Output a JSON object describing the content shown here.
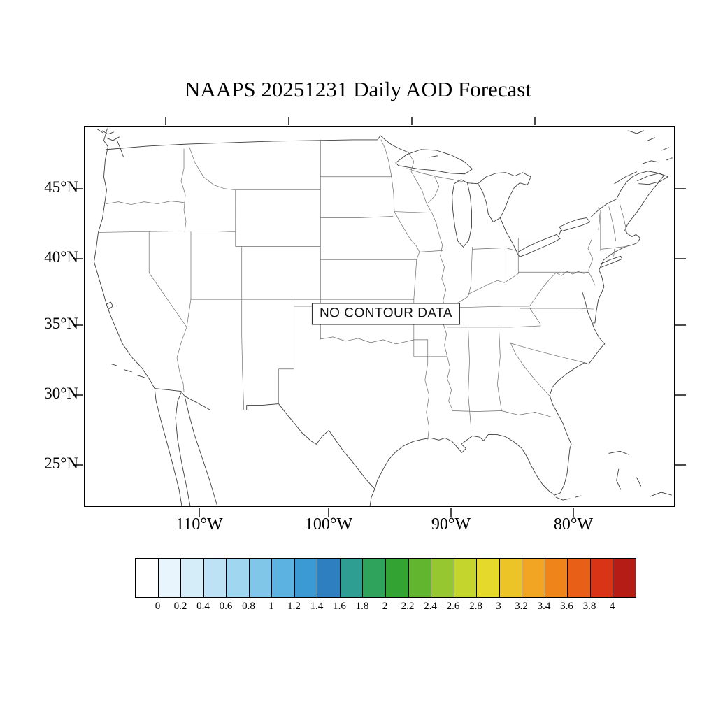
{
  "chart_data": {
    "type": "map",
    "title": "NAAPS 20251231 Daily AOD Forecast",
    "status_annotation": "NO CONTOUR DATA",
    "region": {
      "lat_tick_labels": [
        "45°N",
        "40°N",
        "35°N",
        "30°N",
        "25°N"
      ],
      "lon_tick_labels": [
        "110°W",
        "100°W",
        "90°W",
        "80°W"
      ]
    },
    "colorbar": {
      "tick_labels": [
        "0",
        "0.2",
        "0.4",
        "0.6",
        "0.8",
        "1",
        "1.2",
        "1.4",
        "1.6",
        "1.8",
        "2",
        "2.2",
        "2.4",
        "2.6",
        "2.8",
        "3",
        "3.2",
        "3.4",
        "3.6",
        "3.8",
        "4"
      ],
      "cell_colors": [
        "#ffffff",
        "#e9f5fc",
        "#d5ecf9",
        "#bde2f5",
        "#a1d6f0",
        "#80c6e9",
        "#5cb3e1",
        "#3b99d4",
        "#2d7fc0",
        "#2f9e92",
        "#2fa25c",
        "#33a433",
        "#62b52e",
        "#96c630",
        "#c4d52e",
        "#e5d92c",
        "#ecc427",
        "#f1a522",
        "#ef841b",
        "#e85f18",
        "#da3417",
        "#b51c15"
      ]
    }
  }
}
